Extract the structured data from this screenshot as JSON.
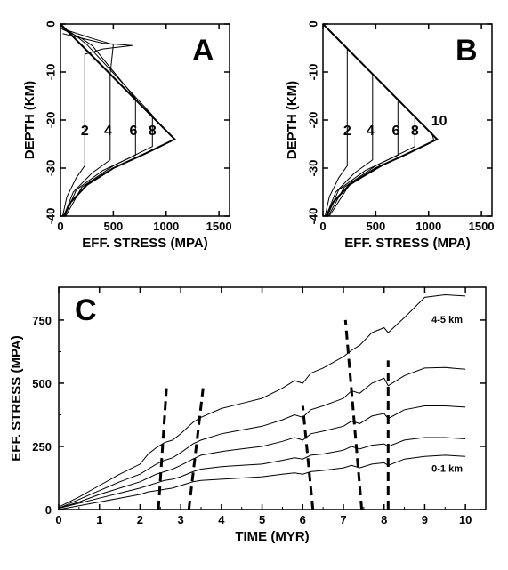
{
  "chart_data": [
    {
      "type": "line",
      "panel_label": "A",
      "xlabel": "EFF. STRESS (MPA)",
      "ylabel": "DEPTH (KM)",
      "xlim": [
        0,
        1600
      ],
      "ylim": [
        -40,
        0
      ],
      "xticks": [
        0,
        500,
        1000,
        1500
      ],
      "yticks": [
        0,
        -10,
        -20,
        -30,
        -40
      ],
      "curve_labels": [
        {
          "text": "2",
          "x": 230,
          "y": -22
        },
        {
          "text": "4",
          "x": 450,
          "y": -22
        },
        {
          "text": "6",
          "x": 690,
          "y": -22
        },
        {
          "text": "8",
          "x": 870,
          "y": -22
        }
      ],
      "series": [
        {
          "values": [
            [
              0,
              0
            ],
            [
              1080,
              -24
            ],
            [
              800,
              -27
            ],
            [
              500,
              -30
            ],
            [
              250,
              -33.5
            ],
            [
              100,
              -37
            ],
            [
              30,
              -40
            ]
          ]
        },
        {
          "values": [
            [
              20,
              -2
            ],
            [
              400,
              -4
            ],
            [
              680,
              -4.5
            ],
            [
              400,
              -5.2
            ],
            [
              230,
              -6.3
            ],
            [
              230,
              -29.5
            ],
            [
              150,
              -32
            ],
            [
              60,
              -36
            ],
            [
              20,
              -40
            ]
          ]
        },
        {
          "values": [
            [
              20,
              -1
            ],
            [
              300,
              -3
            ],
            [
              500,
              -4.3
            ],
            [
              470,
              -10.5
            ],
            [
              470,
              -28.3
            ],
            [
              300,
              -31
            ],
            [
              120,
              -35
            ],
            [
              30,
              -40
            ]
          ]
        },
        {
          "values": [
            [
              10,
              -1
            ],
            [
              200,
              -3
            ],
            [
              300,
              -4.5
            ],
            [
              710,
              -15.5
            ],
            [
              710,
              -27.3
            ],
            [
              400,
              -30.5
            ],
            [
              150,
              -34.5
            ],
            [
              40,
              -40
            ]
          ]
        },
        {
          "values": [
            [
              10,
              -0.5
            ],
            [
              150,
              -2.5
            ],
            [
              250,
              -4.3
            ],
            [
              870,
              -19
            ],
            [
              870,
              -25.5
            ],
            [
              500,
              -29.5
            ],
            [
              200,
              -34
            ],
            [
              50,
              -40
            ]
          ]
        }
      ]
    },
    {
      "type": "line",
      "panel_label": "B",
      "xlabel": "EFF. STRESS (MPA)",
      "ylabel": "DEPTH (KM)",
      "xlim": [
        0,
        1600
      ],
      "ylim": [
        -40,
        0
      ],
      "xticks": [
        0,
        500,
        1000,
        1500
      ],
      "yticks": [
        0,
        -10,
        -20,
        -30,
        -40
      ],
      "curve_labels": [
        {
          "text": "2",
          "x": 230,
          "y": -22
        },
        {
          "text": "4",
          "x": 450,
          "y": -22
        },
        {
          "text": "6",
          "x": 690,
          "y": -22
        },
        {
          "text": "8",
          "x": 870,
          "y": -22
        },
        {
          "text": "10",
          "x": 1100,
          "y": -20
        }
      ],
      "series": [
        {
          "values": [
            [
              0,
              0
            ],
            [
              1080,
              -24
            ],
            [
              800,
              -27
            ],
            [
              500,
              -30
            ],
            [
              250,
              -33.5
            ],
            [
              100,
              -37
            ],
            [
              30,
              -40
            ]
          ]
        },
        {
          "values": [
            [
              0,
              0
            ],
            [
              230,
              -5.1
            ],
            [
              230,
              -29.5
            ],
            [
              150,
              -32
            ],
            [
              60,
              -36
            ],
            [
              20,
              -40
            ]
          ]
        },
        {
          "values": [
            [
              470,
              -10.5
            ],
            [
              470,
              -28.3
            ],
            [
              300,
              -31
            ],
            [
              120,
              -35
            ],
            [
              30,
              -40
            ]
          ]
        },
        {
          "values": [
            [
              710,
              -15.5
            ],
            [
              710,
              -27.3
            ],
            [
              400,
              -30.5
            ],
            [
              150,
              -34.5
            ],
            [
              40,
              -40
            ]
          ]
        },
        {
          "values": [
            [
              870,
              -19
            ],
            [
              870,
              -25.5
            ],
            [
              500,
              -29.5
            ],
            [
              200,
              -34
            ],
            [
              50,
              -40
            ]
          ]
        },
        {
          "values": [
            [
              1030,
              -22.5
            ],
            [
              1050,
              -24.3
            ],
            [
              600,
              -29
            ],
            [
              250,
              -33.5
            ],
            [
              60,
              -40
            ]
          ]
        }
      ]
    },
    {
      "type": "line",
      "panel_label": "C",
      "xlabel": "TIME (MYR)",
      "ylabel": "EFF. STRESS (MPA)",
      "xlim": [
        0,
        10.5
      ],
      "ylim": [
        0,
        880
      ],
      "xticks": [
        0,
        1,
        2,
        3,
        4,
        5,
        6,
        7,
        8,
        9,
        10
      ],
      "yticks": [
        0,
        250,
        500,
        750
      ],
      "annotations": [
        {
          "text": "4-5 km",
          "x": 9.55,
          "y": 740
        },
        {
          "text": "0-1 km",
          "x": 9.55,
          "y": 150
        }
      ],
      "series": [
        {
          "name": "4-5 km",
          "values": [
            [
              0,
              10
            ],
            [
              0.5,
              50
            ],
            [
              1,
              95
            ],
            [
              1.5,
              140
            ],
            [
              2,
              180
            ],
            [
              2.2,
              220
            ],
            [
              2.4,
              245
            ],
            [
              2.6,
              265
            ],
            [
              2.8,
              275
            ],
            [
              3.0,
              300
            ],
            [
              3.3,
              345
            ],
            [
              3.5,
              365
            ],
            [
              4,
              400
            ],
            [
              4.5,
              420
            ],
            [
              5,
              440
            ],
            [
              5.5,
              480
            ],
            [
              5.8,
              510
            ],
            [
              6,
              500
            ],
            [
              6.2,
              540
            ],
            [
              6.5,
              560
            ],
            [
              7,
              605
            ],
            [
              7.2,
              630
            ],
            [
              7.4,
              650
            ],
            [
              7.7,
              700
            ],
            [
              8,
              720
            ],
            [
              8.1,
              700
            ],
            [
              8.5,
              760
            ],
            [
              9,
              840
            ],
            [
              9.5,
              850
            ],
            [
              10,
              845
            ]
          ]
        },
        {
          "values": [
            [
              0,
              5
            ],
            [
              0.5,
              40
            ],
            [
              1,
              75
            ],
            [
              1.5,
              110
            ],
            [
              2,
              140
            ],
            [
              2.2,
              160
            ],
            [
              2.4,
              180
            ],
            [
              2.6,
              195
            ],
            [
              2.8,
              205
            ],
            [
              3.0,
              225
            ],
            [
              3.3,
              260
            ],
            [
              3.5,
              275
            ],
            [
              4,
              300
            ],
            [
              4.5,
              315
            ],
            [
              5,
              330
            ],
            [
              5.5,
              355
            ],
            [
              5.8,
              375
            ],
            [
              6,
              365
            ],
            [
              6.2,
              395
            ],
            [
              6.5,
              410
            ],
            [
              7,
              440
            ],
            [
              7.2,
              470
            ],
            [
              7.4,
              460
            ],
            [
              7.7,
              500
            ],
            [
              8,
              520
            ],
            [
              8.1,
              490
            ],
            [
              8.5,
              530
            ],
            [
              9,
              560
            ],
            [
              9.5,
              562
            ],
            [
              10,
              555
            ]
          ]
        },
        {
          "values": [
            [
              0,
              5
            ],
            [
              0.5,
              30
            ],
            [
              1,
              60
            ],
            [
              1.5,
              85
            ],
            [
              2,
              110
            ],
            [
              2.2,
              125
            ],
            [
              2.4,
              140
            ],
            [
              2.6,
              150
            ],
            [
              2.8,
              160
            ],
            [
              3.0,
              175
            ],
            [
              3.3,
              200
            ],
            [
              3.5,
              215
            ],
            [
              4,
              230
            ],
            [
              4.5,
              240
            ],
            [
              5,
              250
            ],
            [
              5.5,
              270
            ],
            [
              5.8,
              285
            ],
            [
              6,
              275
            ],
            [
              6.2,
              300
            ],
            [
              6.5,
              310
            ],
            [
              7,
              330
            ],
            [
              7.2,
              350
            ],
            [
              7.4,
              340
            ],
            [
              7.7,
              370
            ],
            [
              8,
              380
            ],
            [
              8.1,
              360
            ],
            [
              8.5,
              395
            ],
            [
              9,
              410
            ],
            [
              9.5,
              410
            ],
            [
              10,
              405
            ]
          ]
        },
        {
          "values": [
            [
              0,
              5
            ],
            [
              0.5,
              25
            ],
            [
              1,
              45
            ],
            [
              1.5,
              65
            ],
            [
              2,
              85
            ],
            [
              2.2,
              95
            ],
            [
              2.4,
              105
            ],
            [
              2.6,
              115
            ],
            [
              2.8,
              120
            ],
            [
              3.0,
              130
            ],
            [
              3.3,
              150
            ],
            [
              3.5,
              160
            ],
            [
              4,
              170
            ],
            [
              4.5,
              175
            ],
            [
              5,
              180
            ],
            [
              5.5,
              195
            ],
            [
              5.8,
              205
            ],
            [
              6,
              200
            ],
            [
              6.2,
              215
            ],
            [
              6.5,
              220
            ],
            [
              7,
              235
            ],
            [
              7.2,
              250
            ],
            [
              7.4,
              240
            ],
            [
              7.7,
              255
            ],
            [
              8,
              260
            ],
            [
              8.1,
              250
            ],
            [
              8.5,
              275
            ],
            [
              9,
              285
            ],
            [
              9.5,
              285
            ],
            [
              10,
              280
            ]
          ]
        },
        {
          "name": "0-1 km",
          "values": [
            [
              0,
              0
            ],
            [
              0.5,
              15
            ],
            [
              1,
              30
            ],
            [
              1.5,
              45
            ],
            [
              2,
              60
            ],
            [
              2.2,
              70
            ],
            [
              2.4,
              75
            ],
            [
              2.6,
              80
            ],
            [
              2.8,
              85
            ],
            [
              3.0,
              95
            ],
            [
              3.3,
              110
            ],
            [
              3.5,
              115
            ],
            [
              4,
              120
            ],
            [
              4.5,
              125
            ],
            [
              5,
              130
            ],
            [
              5.5,
              140
            ],
            [
              5.8,
              145
            ],
            [
              6,
              140
            ],
            [
              6.2,
              150
            ],
            [
              6.5,
              155
            ],
            [
              7,
              165
            ],
            [
              7.2,
              175
            ],
            [
              7.4,
              165
            ],
            [
              7.7,
              180
            ],
            [
              8,
              185
            ],
            [
              8.1,
              175
            ],
            [
              8.5,
              200
            ],
            [
              9,
              210
            ],
            [
              9.5,
              215
            ],
            [
              10,
              210
            ]
          ]
        }
      ],
      "dashed_lines": [
        [
          [
            2.45,
            0
          ],
          [
            2.65,
            480
          ]
        ],
        [
          [
            3.2,
            0
          ],
          [
            3.55,
            480
          ]
        ],
        [
          [
            6.25,
            0
          ],
          [
            6.0,
            410
          ]
        ],
        [
          [
            7.45,
            0
          ],
          [
            7.05,
            750
          ]
        ],
        [
          [
            8.1,
            0
          ],
          [
            8.1,
            590
          ]
        ]
      ]
    }
  ]
}
